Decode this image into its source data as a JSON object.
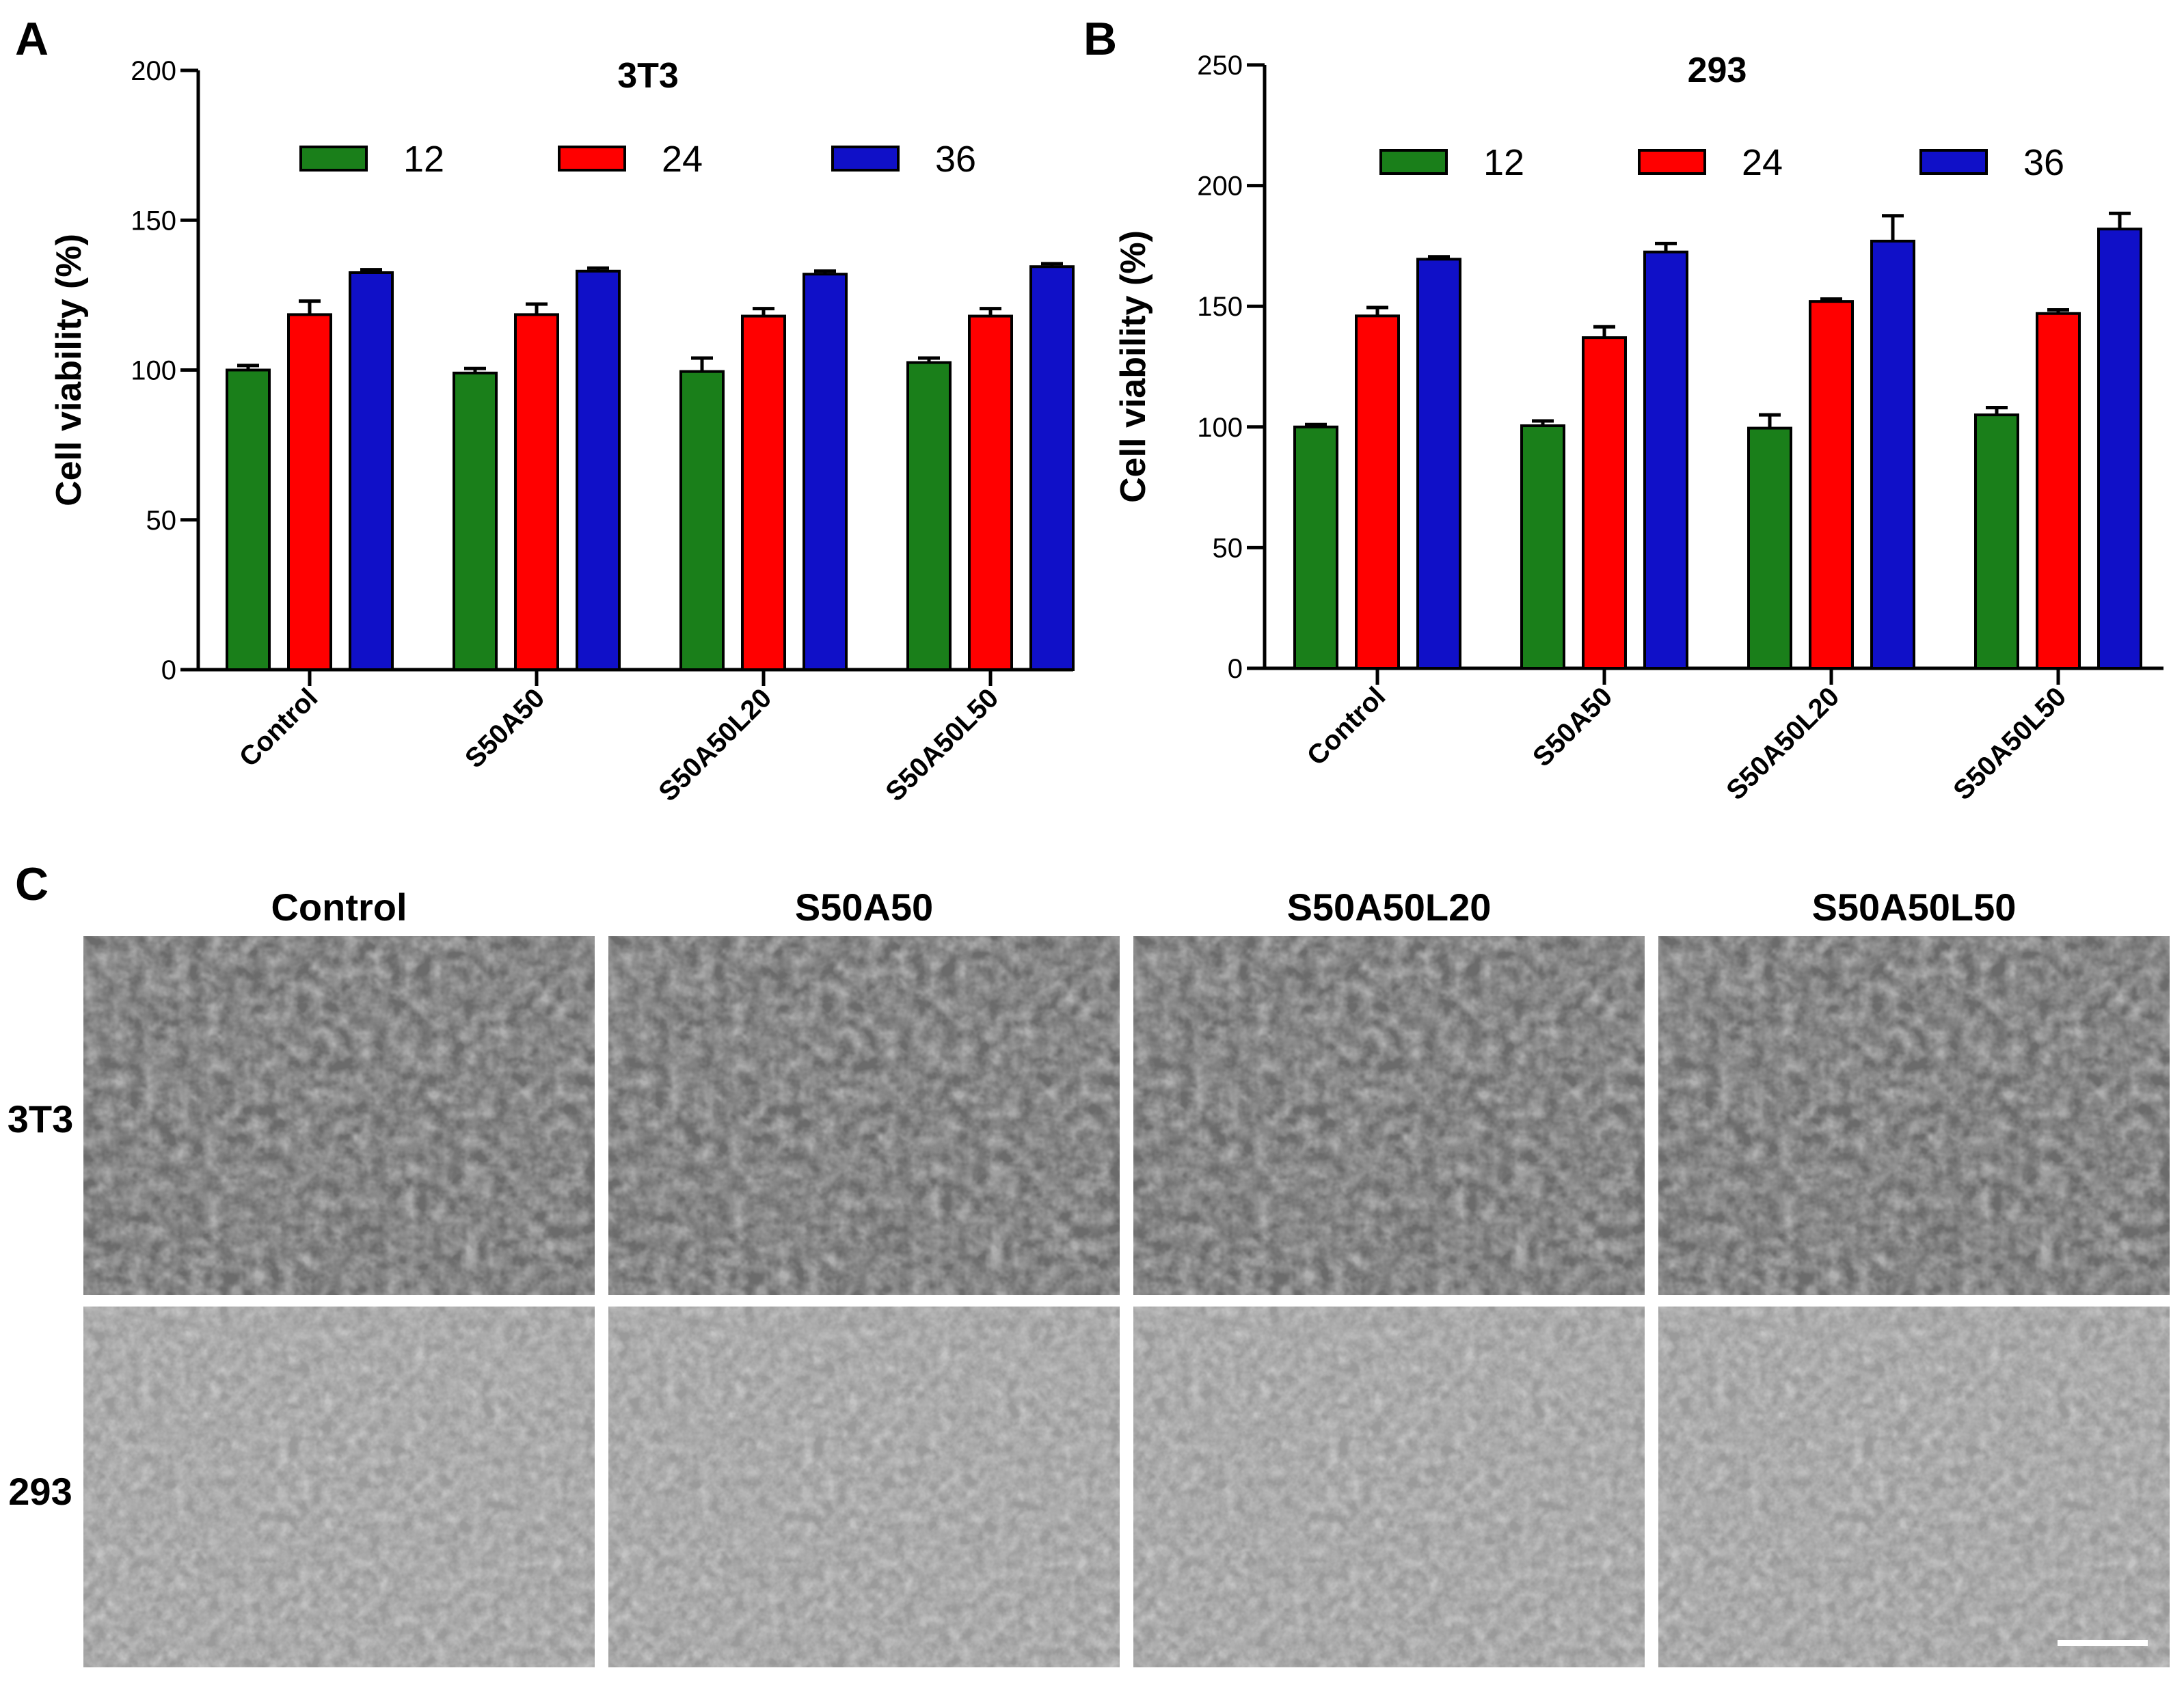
{
  "panel_letters": {
    "a": "A",
    "b": "B",
    "c": "C"
  },
  "chart_data": [
    {
      "type": "bar",
      "title": "3T3",
      "xlabel": "",
      "ylabel": "Cell viability (%)",
      "ylim": [
        0,
        200
      ],
      "yticks": [
        0,
        50,
        100,
        150,
        200
      ],
      "categories": [
        "Control",
        "S50A50",
        "S50A50L20",
        "S50A50L50"
      ],
      "legend_position": "top",
      "series": [
        {
          "name": "12",
          "color": "#1a7f1a",
          "values": [
            100,
            99,
            99.5,
            102.5
          ],
          "errors": [
            1.5,
            1.5,
            4.5,
            1.5
          ]
        },
        {
          "name": "24",
          "color": "#ff0000",
          "values": [
            118.5,
            118.5,
            118,
            118
          ],
          "errors": [
            4.5,
            3.5,
            2.5,
            2.5
          ]
        },
        {
          "name": "36",
          "color": "#1010c8",
          "values": [
            132.5,
            133,
            132,
            134.5
          ],
          "errors": [
            1.0,
            1.0,
            1.0,
            1.0
          ]
        }
      ]
    },
    {
      "type": "bar",
      "title": "293",
      "xlabel": "",
      "ylabel": "Cell viability (%)",
      "ylim": [
        0,
        250
      ],
      "yticks": [
        0,
        50,
        100,
        150,
        200,
        250
      ],
      "categories": [
        "Control",
        "S50A50",
        "S50A50L20",
        "S50A50L50"
      ],
      "legend_position": "top",
      "series": [
        {
          "name": "12",
          "color": "#1a7f1a",
          "values": [
            100,
            100.5,
            99.5,
            105
          ],
          "errors": [
            1.0,
            2.0,
            5.5,
            3.0
          ]
        },
        {
          "name": "24",
          "color": "#ff0000",
          "values": [
            146,
            137,
            152,
            147
          ],
          "errors": [
            3.5,
            4.5,
            1.0,
            1.5
          ]
        },
        {
          "name": "36",
          "color": "#1010c8",
          "values": [
            169.5,
            172.5,
            177,
            182
          ],
          "errors": [
            1.0,
            3.5,
            10.5,
            6.5
          ]
        }
      ]
    }
  ],
  "micrographs": {
    "columns": [
      "Control",
      "S50A50",
      "S50A50L20",
      "S50A50L50"
    ],
    "rows": [
      "3T3",
      "293"
    ]
  }
}
